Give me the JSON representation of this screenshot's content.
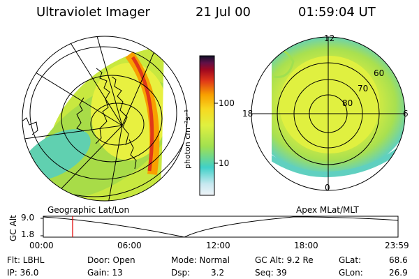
{
  "header": {
    "instrument": "Ultraviolet Imager",
    "date": "21 Jul 00",
    "time": "01:59:04 UT"
  },
  "colorbar": {
    "label": "photon cm⁻²s⁻¹",
    "ticks": [
      "100",
      "10"
    ],
    "colors": [
      "#e8f0f4",
      "#c8e8f0",
      "#40d0c8",
      "#a0e050",
      "#e0f040",
      "#f8e020",
      "#f8a800",
      "#e03818",
      "#b00818",
      "#70083c",
      "#101028"
    ]
  },
  "globe_left": {
    "caption": "Geographic Lat/Lon"
  },
  "polar_right": {
    "caption": "Apex MLat/MLT",
    "mlt_labels": [
      "12",
      "18",
      "6",
      "0"
    ],
    "mlat_labels": [
      "60",
      "70",
      "80"
    ]
  },
  "altitude_plot": {
    "axis_label": "GC Alt",
    "y_ticks": [
      "9.0",
      "1.8"
    ],
    "x_ticks": [
      "00:00",
      "06:00",
      "12:00",
      "18:00",
      "23:59"
    ],
    "current_time_fraction": 0.0826
  },
  "status": {
    "filter": "Flt: LBHL",
    "door": "Door: Open",
    "mode": "Mode: Normal",
    "gc_alt": "GC Alt: 9.2 Re",
    "glat_label": "GLat:",
    "glat_value": "68.6",
    "ip": "IP: 36.0",
    "gain": "Gain: 13",
    "dsp_label": "Dsp:",
    "dsp_value": "3.2",
    "seq": "Seq: 39",
    "glon_label": "GLon:",
    "glon_value": "26.9"
  }
}
